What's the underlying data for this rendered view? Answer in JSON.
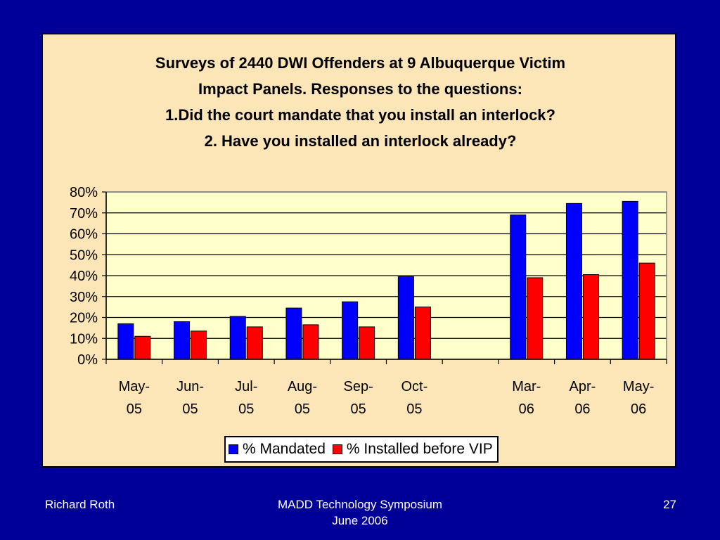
{
  "chart_data": {
    "type": "bar",
    "title_lines": [
      "Surveys of 2440 DWI Offenders at 9 Albuquerque Victim",
      "Impact Panels.  Responses to the questions:",
      "1.Did the court mandate that you install an interlock?",
      "2. Have you installed an interlock already?"
    ],
    "categories": [
      [
        "May-",
        "05"
      ],
      [
        "Jun-",
        "05"
      ],
      [
        "Jul-",
        "05"
      ],
      [
        "Aug-",
        "05"
      ],
      [
        "Sep-",
        "05"
      ],
      [
        "Oct-",
        "05"
      ],
      [
        "",
        ""
      ],
      [
        "Mar-",
        "06"
      ],
      [
        "Apr-",
        "06"
      ],
      [
        "May-",
        "06"
      ]
    ],
    "series": [
      {
        "name": "% Mandated",
        "color": "#0000FF",
        "values": [
          17,
          18,
          20.5,
          24.5,
          27.5,
          39.5,
          null,
          69,
          74.5,
          75.5
        ]
      },
      {
        "name": "% Installed before VIP",
        "color": "#FF0000",
        "values": [
          11,
          13.5,
          15.5,
          16.5,
          15.5,
          25,
          null,
          39,
          40.5,
          46
        ]
      }
    ],
    "ylim": [
      0,
      80
    ],
    "yticks": [
      "0%",
      "10%",
      "20%",
      "30%",
      "40%",
      "50%",
      "60%",
      "70%",
      "80%"
    ],
    "grid": true,
    "plot_background": "#FFFFCC",
    "legend_position": "bottom"
  },
  "footer": {
    "left": "Richard Roth",
    "center_line1": "MADD Technology Symposium",
    "center_line2": "June 2006",
    "right": "27"
  }
}
